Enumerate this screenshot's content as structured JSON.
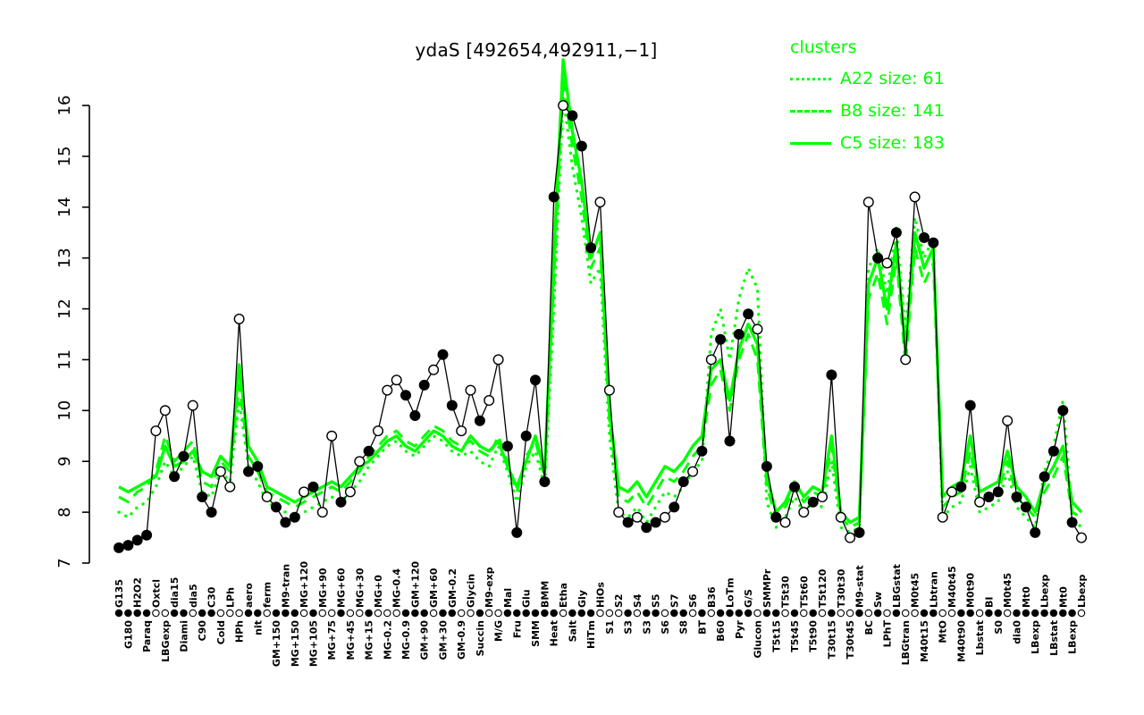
{
  "title": "ydaS [492654,492911,−1]",
  "legend": {
    "title": "clusters",
    "items": [
      {
        "name": "A22",
        "style": "dotted",
        "label": "A22 size: 61",
        "size": 61
      },
      {
        "name": "B8",
        "style": "dashed",
        "label": "B8 size: 141",
        "size": 141
      },
      {
        "name": "C5",
        "style": "solid",
        "label": "C5 size: 183",
        "size": 183
      }
    ]
  },
  "colors": {
    "cluster": "#00ff00",
    "gene": "#000000",
    "background": "#ffffff"
  },
  "chart_data": {
    "type": "line",
    "title": "ydaS [492654,492911,−1]",
    "xlabel": "",
    "ylabel": "",
    "ylim": [
      7,
      16
    ],
    "yticks": [
      7,
      8,
      9,
      10,
      11,
      12,
      13,
      14,
      15,
      16
    ],
    "grid": false,
    "legend_position": "top-right",
    "x_label_rotation": 90,
    "categories": [
      "G135",
      "G180",
      "H2O2",
      "Paraq",
      "Oxtcl",
      "LBGexp",
      "dia15",
      "Diami",
      "dia5",
      "C90",
      "C30",
      "Cold",
      "LPh",
      "HPh",
      "aero",
      "nit",
      "ferm",
      "GM+150",
      "M9-tran",
      "MG+150",
      "MG+120",
      "MG+105",
      "MG+90",
      "MG+75",
      "MG+60",
      "MG+45",
      "MG+30",
      "MG+15",
      "MG+0",
      "MG-0.2",
      "MG-0.4",
      "MG-0.9",
      "GM+120",
      "GM+90",
      "GM+60",
      "GM+30",
      "GM-0.2",
      "GM-0.9",
      "Glycin",
      "Succin",
      "M9-exp",
      "M/G",
      "Mal",
      "Fru",
      "Glu",
      "SMM",
      "BMM",
      "Heat",
      "Etha",
      "Salt",
      "Gly",
      "HiTm",
      "HiOs",
      "S1",
      "S2",
      "S3",
      "S4",
      "S3",
      "S5",
      "S6",
      "S7",
      "S8",
      "S6",
      "BT",
      "B36",
      "B60",
      "LoTm",
      "Pyr",
      "G/S",
      "Glucon",
      "SMMPr",
      "T5t15",
      "T5t30",
      "T5t45",
      "T5t60",
      "T5t90",
      "T5t120",
      "T30t15",
      "T30t30",
      "T30t45",
      "M9-stat",
      "BC",
      "Sw",
      "LPhT",
      "LBGstat",
      "LBGtran",
      "M0t45",
      "M40t15",
      "Lbtran",
      "MtO",
      "M40t45",
      "M40t90",
      "M0t90",
      "Lbstat",
      "BI",
      "S0",
      "M0t45",
      "dia0",
      "Mt0",
      "LBexp",
      "Lbexp",
      "LBstat",
      "Mt0",
      "LBexp",
      "Lbexp"
    ],
    "gene_series": {
      "name": "ydaS",
      "color": "#000000",
      "values": [
        7.3,
        7.35,
        7.45,
        7.55,
        9.6,
        10.0,
        8.7,
        9.1,
        10.1,
        8.3,
        8.0,
        8.8,
        8.5,
        11.8,
        8.8,
        8.9,
        8.3,
        8.1,
        7.8,
        7.9,
        8.4,
        8.5,
        8.0,
        9.5,
        8.2,
        8.4,
        9.0,
        9.2,
        9.6,
        10.4,
        10.6,
        10.3,
        9.9,
        10.5,
        10.8,
        11.1,
        10.1,
        9.6,
        10.4,
        9.8,
        10.2,
        11.0,
        9.3,
        7.6,
        9.5,
        10.6,
        8.6,
        14.2,
        16.0,
        15.8,
        15.2,
        13.2,
        14.1,
        10.4,
        8.0,
        7.8,
        7.9,
        7.7,
        7.8,
        7.9,
        8.1,
        8.6,
        8.8,
        9.2,
        11.0,
        11.4,
        9.4,
        11.5,
        11.9,
        11.6,
        8.9,
        7.9,
        7.8,
        8.5,
        8.0,
        8.2,
        8.3,
        10.7,
        7.9,
        7.5,
        7.6,
        14.1,
        13.0,
        12.9,
        13.5,
        11.0,
        14.2,
        13.4,
        13.3,
        7.9,
        8.4,
        8.5,
        10.1,
        8.2,
        8.3,
        8.4,
        9.8,
        8.3,
        8.1,
        7.6,
        8.7,
        9.2,
        10.0,
        7.8,
        7.5
      ],
      "open_point": [
        0,
        0,
        0,
        0,
        1,
        1,
        0,
        0,
        1,
        0,
        0,
        1,
        1,
        1,
        0,
        0,
        1,
        0,
        0,
        0,
        1,
        0,
        1,
        1,
        0,
        1,
        1,
        0,
        1,
        1,
        1,
        0,
        0,
        0,
        1,
        0,
        0,
        1,
        1,
        0,
        1,
        1,
        0,
        0,
        0,
        0,
        0,
        0,
        1,
        0,
        0,
        0,
        1,
        1,
        1,
        0,
        1,
        0,
        0,
        1,
        0,
        0,
        1,
        0,
        1,
        0,
        0,
        0,
        0,
        1,
        0,
        0,
        1,
        0,
        1,
        0,
        1,
        0,
        1,
        1,
        0,
        1,
        0,
        1,
        0,
        1,
        1,
        0,
        0,
        1,
        1,
        0,
        0,
        1,
        0,
        0,
        1,
        0,
        0,
        0,
        0,
        0,
        0,
        0,
        1
      ]
    },
    "series": [
      {
        "name": "A22",
        "label": "A22 size: 61",
        "style": "dotted",
        "color": "#00ff00",
        "values": [
          8.0,
          7.9,
          8.1,
          8.2,
          8.5,
          9.0,
          8.7,
          8.9,
          9.1,
          8.4,
          8.3,
          8.8,
          8.6,
          10.2,
          8.9,
          8.6,
          8.2,
          8.1,
          8.0,
          7.9,
          8.0,
          8.1,
          8.2,
          8.3,
          8.2,
          8.4,
          8.6,
          8.9,
          9.1,
          9.3,
          9.4,
          9.2,
          9.1,
          9.3,
          9.5,
          9.4,
          9.2,
          9.1,
          9.2,
          9.0,
          8.9,
          9.3,
          8.8,
          8.2,
          8.9,
          9.2,
          8.5,
          12.0,
          16.2,
          14.8,
          13.8,
          12.5,
          12.8,
          9.5,
          8.0,
          7.9,
          8.1,
          7.8,
          8.1,
          8.4,
          8.3,
          8.5,
          8.8,
          9.0,
          11.5,
          12.0,
          11.0,
          12.2,
          12.8,
          12.4,
          8.2,
          7.7,
          7.9,
          8.3,
          8.0,
          8.2,
          8.1,
          9.0,
          7.7,
          7.6,
          7.7,
          12.8,
          13.2,
          12.3,
          13.6,
          11.5,
          13.8,
          13.0,
          13.4,
          7.9,
          8.1,
          8.2,
          8.9,
          8.0,
          8.1,
          8.2,
          8.8,
          8.1,
          7.9,
          7.7,
          8.8,
          9.3,
          10.2,
          7.9,
          7.7
        ]
      },
      {
        "name": "B8",
        "label": "B8 size: 141",
        "style": "dashed",
        "color": "#00ff00",
        "values": [
          8.3,
          8.2,
          8.4,
          8.5,
          8.8,
          9.5,
          9.0,
          9.2,
          9.4,
          8.6,
          8.5,
          9.0,
          8.8,
          10.5,
          9.1,
          8.8,
          8.4,
          8.3,
          8.2,
          8.1,
          8.2,
          8.3,
          8.4,
          8.5,
          8.4,
          8.6,
          8.8,
          9.1,
          9.3,
          9.5,
          9.6,
          9.4,
          9.3,
          9.5,
          9.7,
          9.6,
          9.4,
          9.3,
          9.4,
          9.2,
          9.1,
          9.5,
          9.0,
          8.4,
          9.1,
          9.4,
          8.7,
          12.5,
          16.5,
          15.2,
          14.2,
          12.8,
          13.2,
          9.8,
          8.3,
          8.2,
          8.4,
          8.1,
          8.4,
          8.7,
          8.6,
          8.8,
          9.1,
          9.3,
          10.5,
          10.8,
          10.0,
          11.0,
          11.5,
          11.0,
          8.5,
          7.9,
          8.1,
          8.5,
          8.2,
          8.4,
          8.3,
          9.3,
          7.9,
          7.7,
          7.8,
          12.2,
          12.7,
          11.7,
          13.0,
          10.9,
          13.2,
          12.5,
          12.9,
          8.1,
          8.3,
          8.4,
          9.2,
          8.2,
          8.3,
          8.4,
          9.0,
          8.3,
          8.1,
          7.9,
          8.4,
          8.7,
          9.1,
          8.0,
          7.9
        ]
      },
      {
        "name": "C5",
        "label": "C5 size: 183",
        "style": "solid",
        "color": "#00ff00",
        "values": [
          8.5,
          8.4,
          8.5,
          8.6,
          8.7,
          9.3,
          8.9,
          9.0,
          9.2,
          8.8,
          8.7,
          9.1,
          8.9,
          10.9,
          9.3,
          9.0,
          8.5,
          8.4,
          8.3,
          8.2,
          8.3,
          8.4,
          8.5,
          8.6,
          8.5,
          8.7,
          8.9,
          9.0,
          9.2,
          9.4,
          9.5,
          9.3,
          9.2,
          9.4,
          9.6,
          9.5,
          9.3,
          9.2,
          9.5,
          9.3,
          9.2,
          9.4,
          8.9,
          8.5,
          9.0,
          9.5,
          8.8,
          13.0,
          16.9,
          15.5,
          14.5,
          13.0,
          13.5,
          10.0,
          8.5,
          8.4,
          8.6,
          8.3,
          8.6,
          8.9,
          8.8,
          9.0,
          9.3,
          9.5,
          10.8,
          11.0,
          10.2,
          11.2,
          11.7,
          11.3,
          8.7,
          8.0,
          8.2,
          8.6,
          8.3,
          8.5,
          8.4,
          9.5,
          8.0,
          7.8,
          7.9,
          12.5,
          13.0,
          12.0,
          13.3,
          11.2,
          13.5,
          12.8,
          13.2,
          8.3,
          8.5,
          8.6,
          9.5,
          8.4,
          8.5,
          8.6,
          9.2,
          8.5,
          8.3,
          8.0,
          8.6,
          8.9,
          9.3,
          8.2,
          8.0
        ]
      }
    ]
  }
}
